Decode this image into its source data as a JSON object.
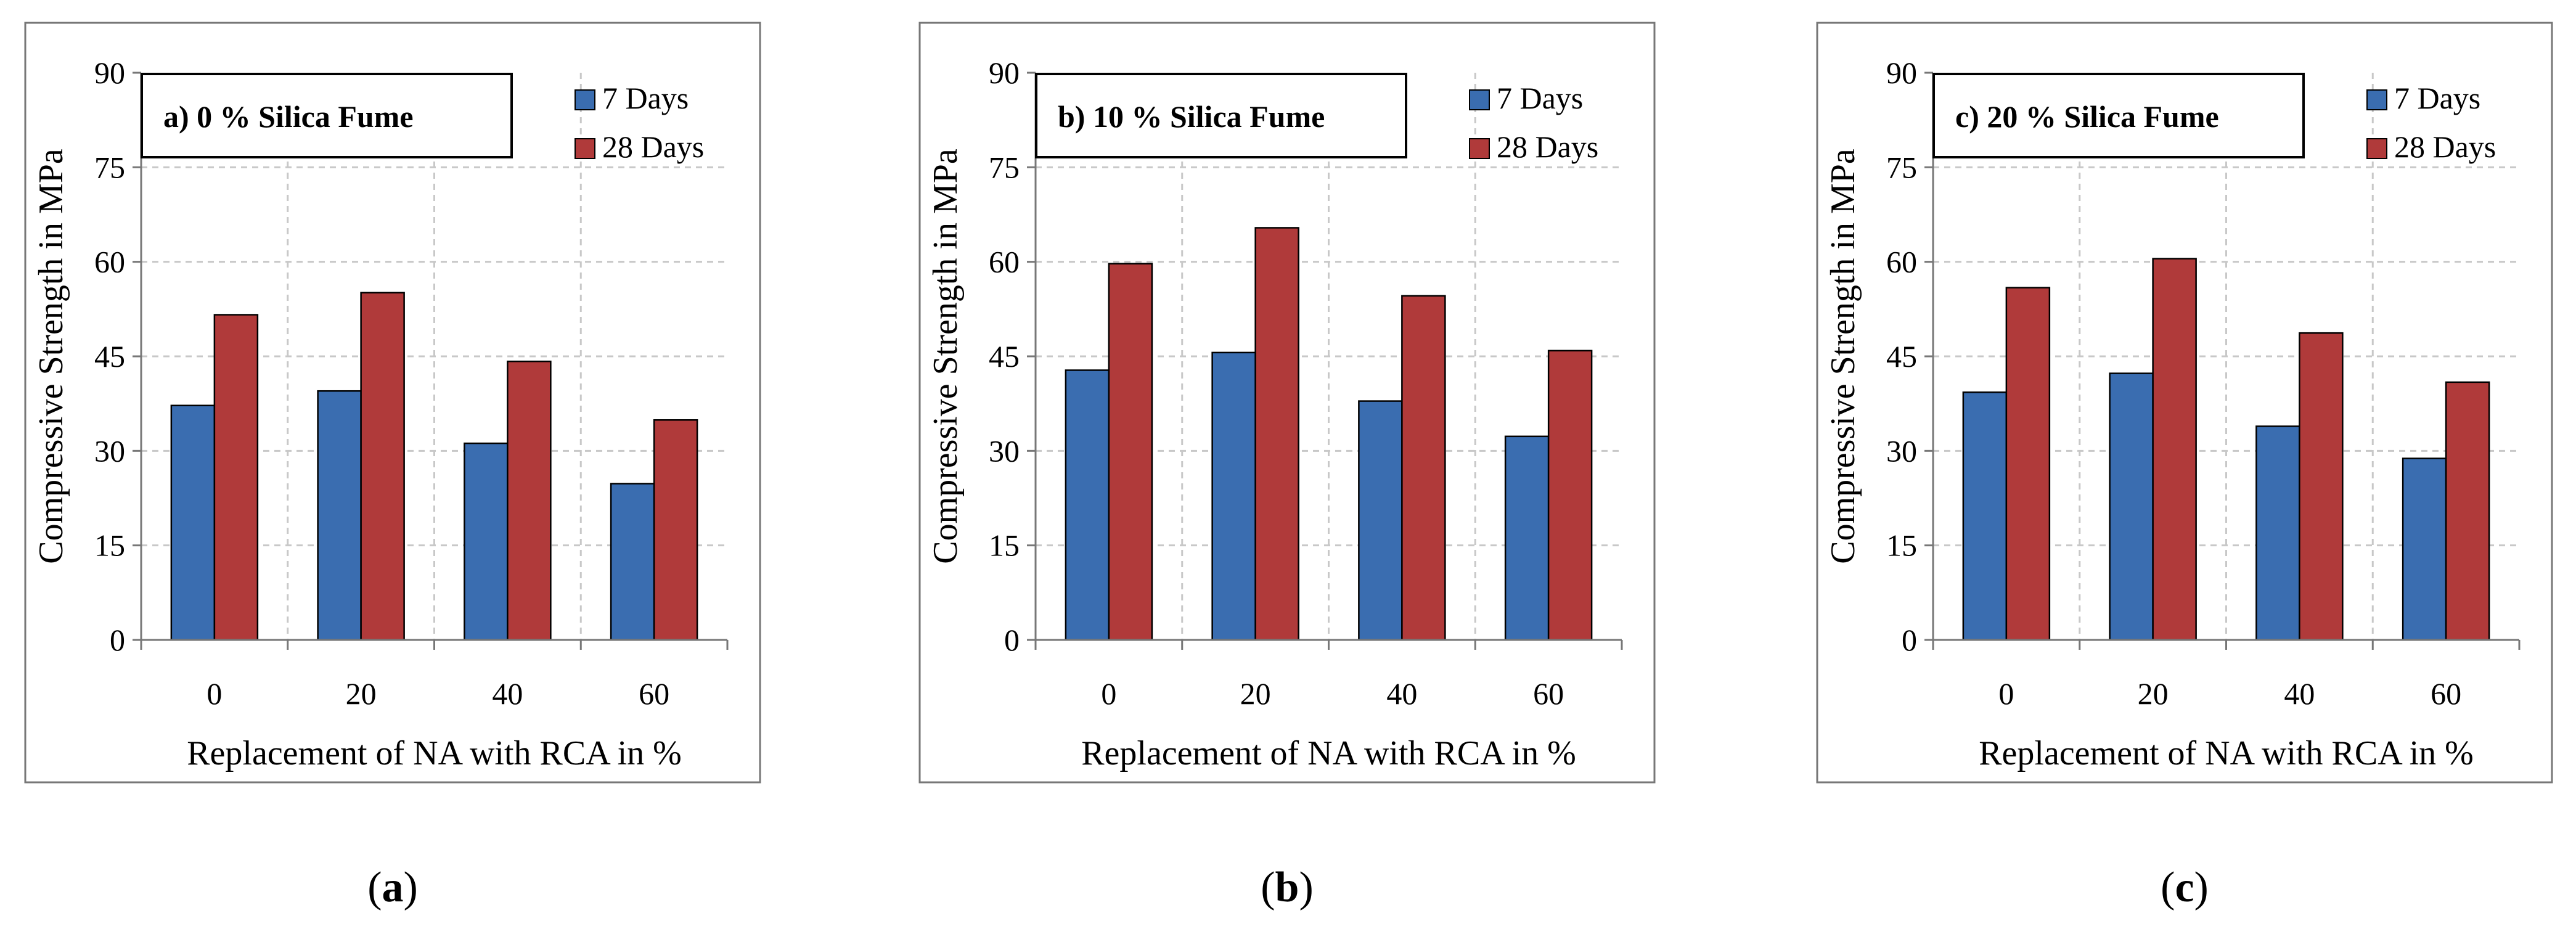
{
  "colors": {
    "series_7d": "#3A6DB0",
    "series_28d": "#B03A3A",
    "grid": "#C8C8C8"
  },
  "captions": [
    {
      "open": "(",
      "letter": "a",
      "close": ")"
    },
    {
      "open": "(",
      "letter": "b",
      "close": ")"
    },
    {
      "open": "(",
      "letter": "c",
      "close": ")"
    }
  ],
  "chart_data": [
    {
      "type": "bar",
      "title": "a) 0 % Silica Fume",
      "xlabel": "Replacement of NA with RCA in %",
      "ylabel": "Compressive Strength in MPa",
      "categories": [
        "0",
        "20",
        "40",
        "60"
      ],
      "yticks": [
        "0",
        "15",
        "30",
        "45",
        "60",
        "75",
        "90"
      ],
      "ylim": [
        0,
        90
      ],
      "grid": true,
      "legend_position": "top-right",
      "series": [
        {
          "name": "7 Days",
          "values": [
            37.2,
            39.5,
            31.2,
            24.8
          ]
        },
        {
          "name": "28 Days",
          "values": [
            51.6,
            55.1,
            44.2,
            34.9
          ]
        }
      ]
    },
    {
      "type": "bar",
      "title": "b) 10 % Silica Fume",
      "xlabel": "Replacement of NA with RCA in %",
      "ylabel": "Compressive Strength in MPa",
      "categories": [
        "0",
        "20",
        "40",
        "60"
      ],
      "yticks": [
        "0",
        "15",
        "30",
        "45",
        "60",
        "75",
        "90"
      ],
      "ylim": [
        0,
        90
      ],
      "grid": true,
      "legend_position": "top-right",
      "series": [
        {
          "name": "7 Days",
          "values": [
            42.8,
            45.6,
            37.9,
            32.3
          ]
        },
        {
          "name": "28 Days",
          "values": [
            59.7,
            65.4,
            54.6,
            45.9
          ]
        }
      ]
    },
    {
      "type": "bar",
      "title": "c) 20 % Silica Fume",
      "xlabel": "Replacement of NA with RCA in %",
      "ylabel": "Compressive Strength in MPa",
      "categories": [
        "0",
        "20",
        "40",
        "60"
      ],
      "yticks": [
        "0",
        "15",
        "30",
        "45",
        "60",
        "75",
        "90"
      ],
      "ylim": [
        0,
        90
      ],
      "grid": true,
      "legend_position": "top-right",
      "series": [
        {
          "name": "7 Days",
          "values": [
            39.3,
            42.3,
            33.9,
            28.8
          ]
        },
        {
          "name": "28 Days",
          "values": [
            55.9,
            60.5,
            48.7,
            40.9
          ]
        }
      ]
    }
  ]
}
